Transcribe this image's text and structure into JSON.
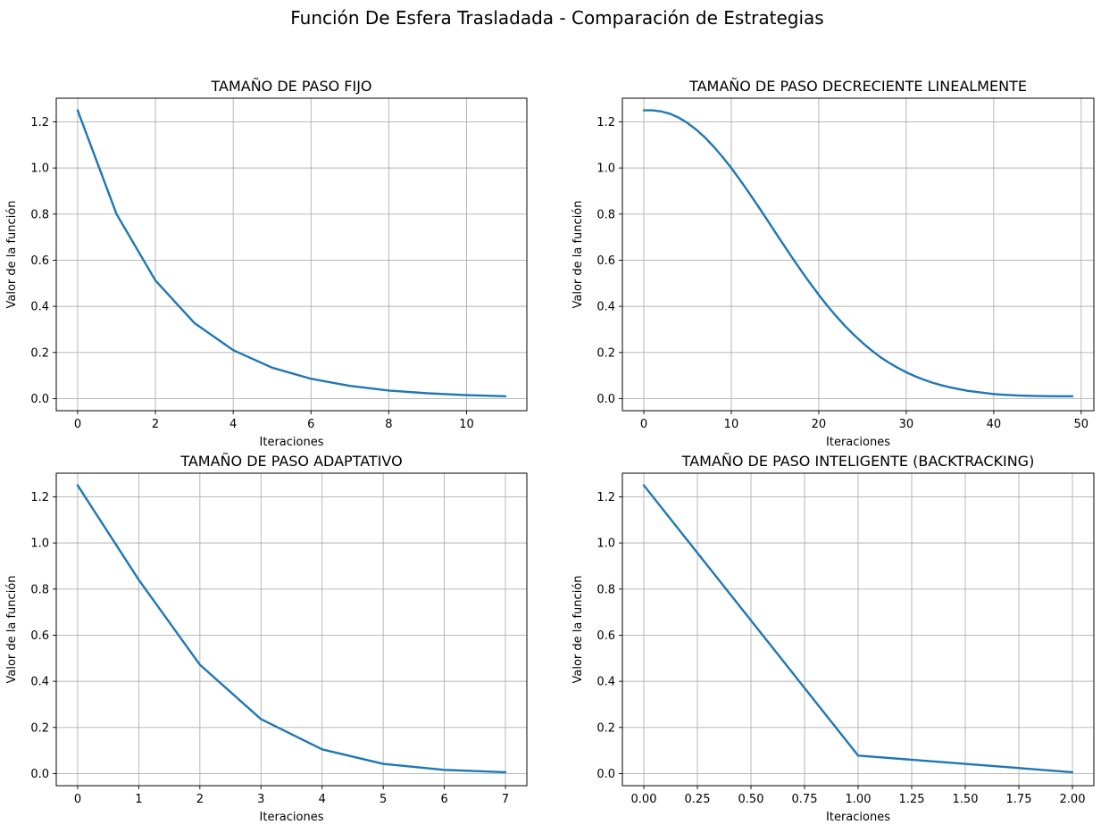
{
  "suptitle": "Función De Esfera Trasladada - Comparación de Estrategias",
  "colors": {
    "line": "#1f77b4",
    "grid": "#b0b0b0",
    "axes": "#000000",
    "background": "#ffffff"
  },
  "chart_data": [
    {
      "type": "line",
      "title": "TAMAÑO DE PASO FIJO",
      "xlabel": "Iteraciones",
      "ylabel": "Valor de la función",
      "grid": true,
      "xlim": [
        -0.55,
        11.55
      ],
      "ylim": [
        -0.0525,
        1.3025
      ],
      "xticks": [
        0,
        2,
        4,
        6,
        8,
        10
      ],
      "xtick_labels": [
        "0",
        "2",
        "4",
        "6",
        "8",
        "10"
      ],
      "yticks": [
        0.0,
        0.2,
        0.4,
        0.6,
        0.8,
        1.0,
        1.2
      ],
      "ytick_labels": [
        "0.0",
        "0.2",
        "0.4",
        "0.6",
        "0.8",
        "1.0",
        "1.2"
      ],
      "series": [
        {
          "x": [
            0,
            1,
            2,
            3,
            4,
            5,
            6,
            7,
            8,
            9,
            10,
            11
          ],
          "y": [
            1.25,
            0.8,
            0.512,
            0.328,
            0.21,
            0.134,
            0.086,
            0.055,
            0.035,
            0.023,
            0.015,
            0.01
          ]
        }
      ]
    },
    {
      "type": "line",
      "title": "TAMAÑO DE PASO DECRECIENTE LINEALMENTE",
      "xlabel": "Iteraciones",
      "ylabel": "Valor de la función",
      "grid": true,
      "xlim": [
        -2.45,
        51.45
      ],
      "ylim": [
        -0.0525,
        1.3025
      ],
      "xticks": [
        0,
        10,
        20,
        30,
        40,
        50
      ],
      "xtick_labels": [
        "0",
        "10",
        "20",
        "30",
        "40",
        "50"
      ],
      "yticks": [
        0.0,
        0.2,
        0.4,
        0.6,
        0.8,
        1.0,
        1.2
      ],
      "ytick_labels": [
        "0.0",
        "0.2",
        "0.4",
        "0.6",
        "0.8",
        "1.0",
        "1.2"
      ],
      "series": [
        {
          "x": [
            0,
            1,
            2,
            3,
            4,
            5,
            6,
            7,
            8,
            9,
            10,
            11,
            12,
            13,
            14,
            15,
            16,
            17,
            18,
            19,
            20,
            21,
            22,
            23,
            24,
            25,
            26,
            27,
            28,
            29,
            30,
            31,
            32,
            33,
            34,
            35,
            36,
            37,
            38,
            39,
            40,
            41,
            42,
            43,
            44,
            45,
            46,
            47,
            48,
            49
          ],
          "y": [
            1.25,
            1.25,
            1.245,
            1.235,
            1.218,
            1.195,
            1.166,
            1.132,
            1.092,
            1.048,
            1.0,
            0.948,
            0.894,
            0.838,
            0.781,
            0.723,
            0.666,
            0.609,
            0.554,
            0.501,
            0.45,
            0.402,
            0.357,
            0.315,
            0.277,
            0.242,
            0.21,
            0.181,
            0.156,
            0.134,
            0.114,
            0.097,
            0.082,
            0.069,
            0.058,
            0.049,
            0.041,
            0.034,
            0.029,
            0.024,
            0.02,
            0.017,
            0.015,
            0.013,
            0.012,
            0.011,
            0.0105,
            0.0102,
            0.0101,
            0.01
          ]
        }
      ]
    },
    {
      "type": "line",
      "title": "TAMAÑO DE PASO ADAPTATIVO",
      "xlabel": "Iteraciones",
      "ylabel": "Valor de la función",
      "grid": true,
      "xlim": [
        -0.35,
        7.35
      ],
      "ylim": [
        -0.0525,
        1.3025
      ],
      "xticks": [
        0,
        1,
        2,
        3,
        4,
        5,
        6,
        7
      ],
      "xtick_labels": [
        "0",
        "1",
        "2",
        "3",
        "4",
        "5",
        "6",
        "7"
      ],
      "yticks": [
        0.0,
        0.2,
        0.4,
        0.6,
        0.8,
        1.0,
        1.2
      ],
      "ytick_labels": [
        "0.0",
        "0.2",
        "0.4",
        "0.6",
        "0.8",
        "1.0",
        "1.2"
      ],
      "series": [
        {
          "x": [
            0,
            1,
            2,
            3,
            4,
            5,
            6,
            7
          ],
          "y": [
            1.25,
            0.84,
            0.472,
            0.236,
            0.105,
            0.042,
            0.016,
            0.006
          ]
        }
      ]
    },
    {
      "type": "line",
      "title": "TAMAÑO DE PASO INTELIGENTE (BACKTRACKING)",
      "xlabel": "Iteraciones",
      "ylabel": "Valor de la función",
      "grid": true,
      "xlim": [
        -0.1,
        2.1
      ],
      "ylim": [
        -0.0525,
        1.3025
      ],
      "xticks": [
        0.0,
        0.25,
        0.5,
        0.75,
        1.0,
        1.25,
        1.5,
        1.75,
        2.0
      ],
      "xtick_labels": [
        "0.00",
        "0.25",
        "0.50",
        "0.75",
        "1.00",
        "1.25",
        "1.50",
        "1.75",
        "2.00"
      ],
      "yticks": [
        0.0,
        0.2,
        0.4,
        0.6,
        0.8,
        1.0,
        1.2
      ],
      "ytick_labels": [
        "0.0",
        "0.2",
        "0.4",
        "0.6",
        "0.8",
        "1.0",
        "1.2"
      ],
      "series": [
        {
          "x": [
            0,
            1,
            2
          ],
          "y": [
            1.25,
            0.078,
            0.006
          ]
        }
      ]
    }
  ]
}
